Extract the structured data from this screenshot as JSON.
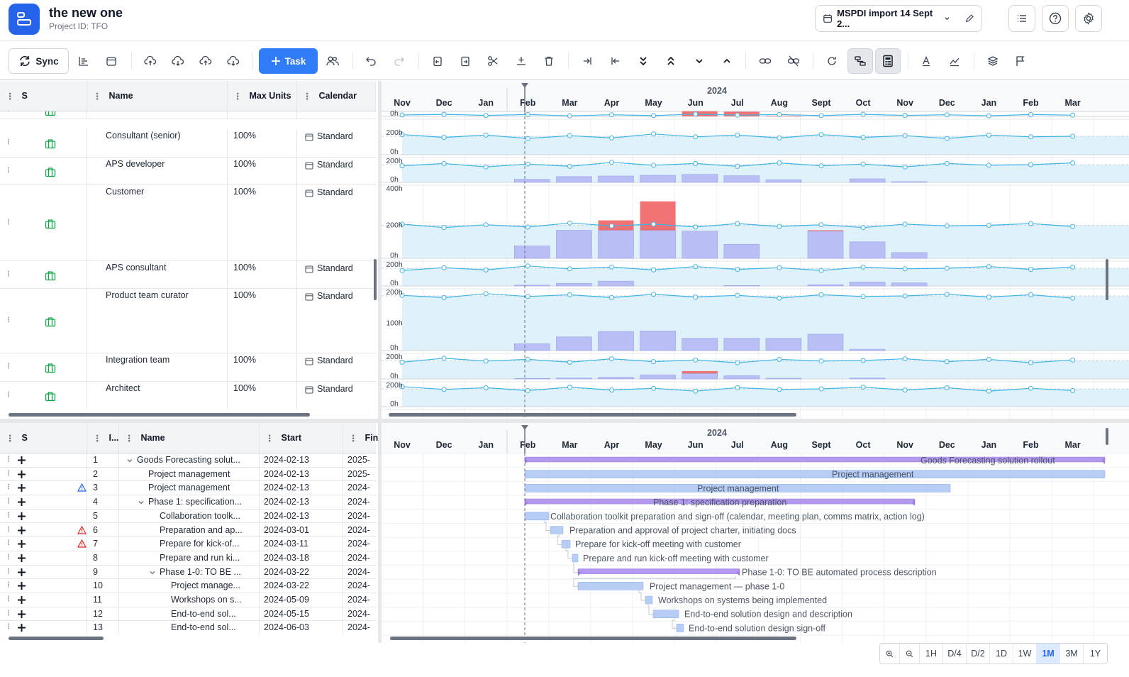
{
  "header": {
    "title": "the new one",
    "subtitle": "Project ID: TFO",
    "project_selector": "MSPDI import 14 Sept 2..."
  },
  "toolbar": {
    "sync_label": "Sync",
    "task_label": "Task"
  },
  "resource_grid": {
    "columns": [
      "S",
      "Name",
      "Max Units",
      "Calendar"
    ],
    "rows": [
      {
        "name": "",
        "max": "",
        "cal": "",
        "h": 25
      },
      {
        "name": "Consultant (senior)",
        "max": "100%",
        "cal": "Standard",
        "h": 40
      },
      {
        "name": "APS developer",
        "max": "100%",
        "cal": "Standard",
        "h": 39
      },
      {
        "name": "Customer",
        "max": "100%",
        "cal": "Standard",
        "h": 107
      },
      {
        "name": "APS consultant",
        "max": "100%",
        "cal": "Standard",
        "h": 39
      },
      {
        "name": "Product team curator",
        "max": "100%",
        "cal": "Standard",
        "h": 91
      },
      {
        "name": "Integration team",
        "max": "100%",
        "cal": "Standard",
        "h": 40
      },
      {
        "name": "Architect",
        "max": "100%",
        "cal": "Standard",
        "h": 39
      }
    ]
  },
  "timeline": {
    "year": "2024",
    "months": [
      "Nov",
      "Dec",
      "Jan",
      "Feb",
      "Mar",
      "Apr",
      "May",
      "Jun",
      "Jul",
      "Aug",
      "Sept",
      "Oct",
      "Nov",
      "Dec",
      "Jan",
      "Feb",
      "Mar"
    ]
  },
  "histogram_axis_labels": [
    "0h",
    "200h",
    "0h",
    "200h",
    "0h",
    "400h",
    "200h",
    "0h",
    "200h",
    "0h",
    "200h",
    "100h",
    "0h",
    "200h",
    "0h",
    "200h",
    "0h"
  ],
  "task_grid": {
    "columns": [
      "S",
      "I...",
      "Name",
      "Start",
      "Fin"
    ],
    "rows": [
      {
        "id": "1",
        "name": "Goods Forecasting solut...",
        "start": "2024-02-13",
        "fin": "2025-",
        "lvl": 0,
        "exp": true,
        "warn": ""
      },
      {
        "id": "2",
        "name": "Project management",
        "start": "2024-02-13",
        "fin": "2025-",
        "lvl": 1,
        "exp": false,
        "warn": ""
      },
      {
        "id": "3",
        "name": "Project management",
        "start": "2024-02-13",
        "fin": "2024-",
        "lvl": 1,
        "exp": false,
        "warn": "blue"
      },
      {
        "id": "4",
        "name": "Phase 1: specification...",
        "start": "2024-02-13",
        "fin": "2024-",
        "lvl": 1,
        "exp": true,
        "warn": ""
      },
      {
        "id": "5",
        "name": "Collaboration toolk...",
        "start": "2024-02-13",
        "fin": "2024-",
        "lvl": 2,
        "exp": false,
        "warn": ""
      },
      {
        "id": "6",
        "name": "Preparation and ap...",
        "start": "2024-03-01",
        "fin": "2024-",
        "lvl": 2,
        "exp": false,
        "warn": "red"
      },
      {
        "id": "7",
        "name": "Prepare for kick-of...",
        "start": "2024-03-11",
        "fin": "2024-",
        "lvl": 2,
        "exp": false,
        "warn": "red"
      },
      {
        "id": "8",
        "name": "Prepare and run ki...",
        "start": "2024-03-18",
        "fin": "2024-",
        "lvl": 2,
        "exp": false,
        "warn": ""
      },
      {
        "id": "9",
        "name": "Phase 1-0: TO BE ...",
        "start": "2024-03-22",
        "fin": "2024-",
        "lvl": 2,
        "exp": true,
        "warn": ""
      },
      {
        "id": "10",
        "name": "Project manage...",
        "start": "2024-03-22",
        "fin": "2024-",
        "lvl": 3,
        "exp": false,
        "warn": ""
      },
      {
        "id": "11",
        "name": "Workshops on s...",
        "start": "2024-05-09",
        "fin": "2024-",
        "lvl": 3,
        "exp": false,
        "warn": ""
      },
      {
        "id": "12",
        "name": "End-to-end sol...",
        "start": "2024-05-15",
        "fin": "2024-",
        "lvl": 3,
        "exp": false,
        "warn": ""
      },
      {
        "id": "13",
        "name": "End-to-end sol...",
        "start": "2024-06-03",
        "fin": "2024-",
        "lvl": 3,
        "exp": false,
        "warn": ""
      }
    ]
  },
  "gantt_labels": [
    "Goods Forecasting solution rollout",
    "Project management",
    "Project management",
    "Phase 1: specification preparation",
    "Collaboration toolkit preparation and sign-off (calendar, meeting plan, comms matrix, action log)",
    "Preparation and approval of project charter, initiating docs",
    "Prepare for kick-off meeting with customer",
    "Prepare and run kick-off meeting with customer",
    "Phase 1-0: TO BE automated process description",
    "Project management — phase 1-0",
    "Workshops on systems being implemented",
    "End-to-end solution design and description",
    "End-to-end solution design sign-off"
  ],
  "zoom": {
    "levels": [
      "1H",
      "D/4",
      "D/2",
      "1D",
      "1W",
      "1M",
      "3M",
      "1Y"
    ],
    "active": "1M"
  },
  "colors": {
    "accent": "#2f7cf6",
    "over": "#ef5a5a",
    "bar": "#b9bff5",
    "summary": "#b39af0",
    "line": "#3fb4e8"
  }
}
